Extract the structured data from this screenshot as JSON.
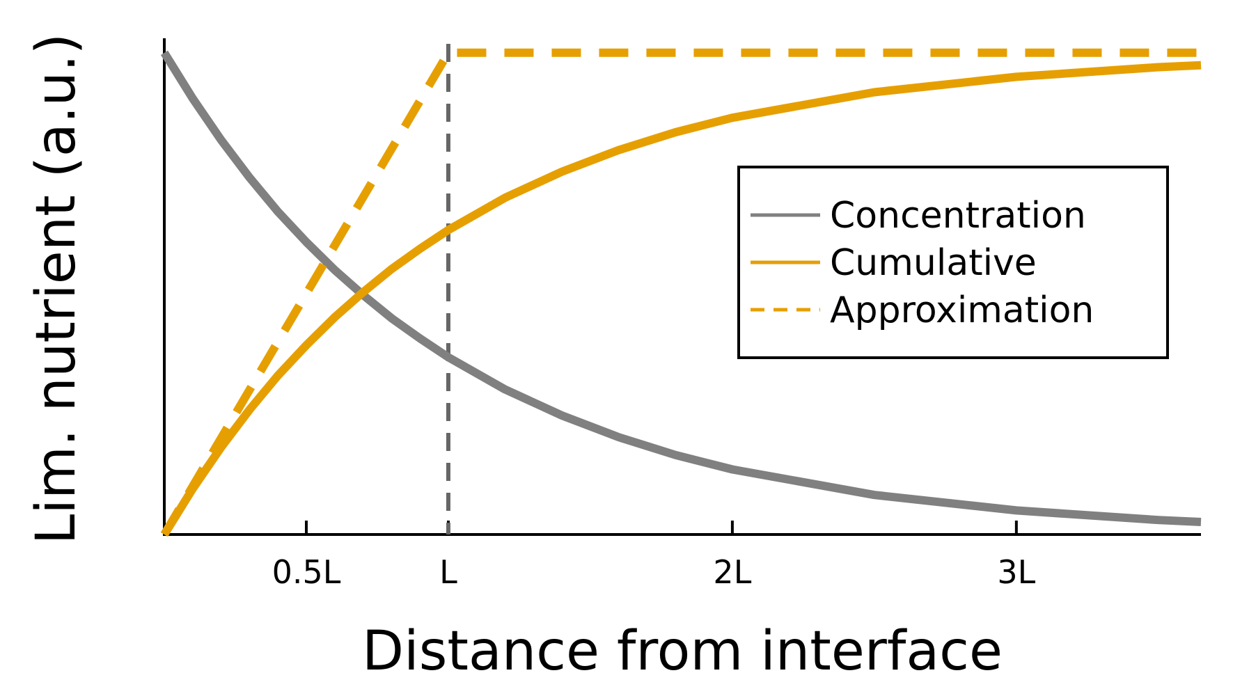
{
  "chart_data": {
    "type": "line",
    "xlabel": "Distance from interface",
    "ylabel": "Lim. nutrient (a.u.)",
    "x_unit": "L",
    "xlim": [
      0,
      3.65
    ],
    "ylim": [
      0,
      1.03
    ],
    "x_ticks": [
      {
        "value": 0.5,
        "label": "0.5L"
      },
      {
        "value": 1,
        "label": "L"
      },
      {
        "value": 2,
        "label": "2L"
      },
      {
        "value": 3,
        "label": "3L"
      }
    ],
    "y_ticks_shown": false,
    "grid": false,
    "legend_position": "right",
    "reference_line": {
      "x": 1,
      "style": "dashed",
      "color": "#666666"
    },
    "colors": {
      "concentration": "#808080",
      "cumulative": "#E69F00",
      "approximation": "#E69F00",
      "axes": "#000000"
    },
    "x": [
      0,
      0.1,
      0.2,
      0.3,
      0.4,
      0.5,
      0.6,
      0.7,
      0.8,
      0.9,
      1.0,
      1.2,
      1.4,
      1.6,
      1.8,
      2.0,
      2.5,
      3.0,
      3.5,
      3.65
    ],
    "series": [
      {
        "name": "Concentration",
        "style": "solid",
        "values": [
          1.0,
          0.905,
          0.819,
          0.741,
          0.67,
          0.607,
          0.549,
          0.497,
          0.449,
          0.407,
          0.368,
          0.301,
          0.247,
          0.202,
          0.165,
          0.135,
          0.082,
          0.05,
          0.03,
          0.026
        ]
      },
      {
        "name": "Cumulative",
        "style": "solid",
        "values": [
          0.0,
          0.095,
          0.181,
          0.259,
          0.33,
          0.393,
          0.451,
          0.503,
          0.551,
          0.593,
          0.632,
          0.699,
          0.753,
          0.798,
          0.835,
          0.865,
          0.918,
          0.95,
          0.97,
          0.974
        ]
      },
      {
        "name": "Approximation",
        "style": "dashed",
        "x": [
          0,
          1,
          3.65
        ],
        "values": [
          0.0,
          1.0,
          1.0
        ]
      }
    ]
  }
}
